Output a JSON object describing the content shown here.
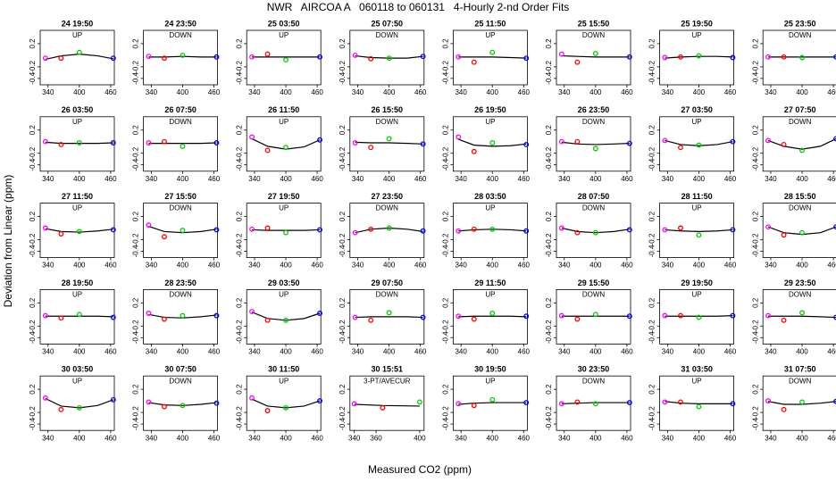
{
  "chart_data": {
    "type": "scatter",
    "title": "NWR   AIRCOA A   060118 to 060131   4-Hourly 2-nd Order Fits",
    "x_label": "Measured CO2 (ppm)",
    "y_label": "Deviation from Linear (ppm)",
    "xlim": [
      325,
      467
    ],
    "ylim": [
      -0.51,
      0.43
    ],
    "xticks": [
      340,
      400,
      460
    ],
    "yticks": [
      0.2,
      -0.2,
      -0.4
    ],
    "x": [
      335,
      365,
      400,
      465
    ],
    "fit_x": [
      335,
      365,
      400,
      435,
      465
    ],
    "point_colors": [
      "#ff00ff",
      "#ff0000",
      "#00cc00",
      "#0000ff"
    ],
    "fit_color": "#000000",
    "panels": [
      {
        "title": "24 19:50",
        "label": "UP",
        "values": [
          -0.05,
          -0.05,
          0.05,
          -0.05
        ],
        "fit": [
          -0.07,
          -0.01,
          0.02,
          -0.01,
          -0.06
        ]
      },
      {
        "title": "24 23:50",
        "label": "DOWN",
        "values": [
          -0.02,
          -0.05,
          0.0,
          -0.03
        ],
        "fit": [
          -0.03,
          -0.03,
          -0.02,
          -0.03,
          -0.03
        ]
      },
      {
        "title": "25 03:50",
        "label": "UP",
        "values": [
          -0.03,
          0.02,
          -0.08,
          -0.03
        ],
        "fit": [
          -0.03,
          -0.03,
          -0.03,
          -0.03,
          -0.03
        ]
      },
      {
        "title": "25 07:50",
        "label": "DOWN",
        "values": [
          0.0,
          -0.06,
          -0.05,
          -0.02
        ],
        "fit": [
          -0.01,
          -0.04,
          -0.05,
          -0.05,
          -0.02
        ]
      },
      {
        "title": "25 11:50",
        "label": "UP",
        "values": [
          -0.03,
          -0.12,
          0.05,
          -0.05
        ],
        "fit": [
          -0.03,
          -0.03,
          -0.03,
          -0.04,
          -0.05
        ]
      },
      {
        "title": "25 15:50",
        "label": "DOWN",
        "values": [
          0.02,
          -0.12,
          0.03,
          -0.03
        ],
        "fit": [
          -0.01,
          -0.02,
          -0.03,
          -0.03,
          -0.03
        ]
      },
      {
        "title": "25 19:50",
        "label": "UP",
        "values": [
          -0.04,
          -0.03,
          -0.01,
          -0.04
        ],
        "fit": [
          -0.05,
          -0.03,
          -0.02,
          -0.02,
          -0.03
        ]
      },
      {
        "title": "25 23:50",
        "label": "DOWN",
        "values": [
          -0.03,
          -0.03,
          -0.04,
          -0.03
        ],
        "fit": [
          -0.03,
          -0.03,
          -0.03,
          -0.03,
          -0.03
        ]
      },
      {
        "title": "26 03:50",
        "label": "UP",
        "values": [
          0.0,
          -0.05,
          -0.02,
          -0.02
        ],
        "fit": [
          -0.01,
          -0.03,
          -0.03,
          -0.03,
          -0.02
        ]
      },
      {
        "title": "26 07:50",
        "label": "DOWN",
        "values": [
          -0.02,
          0.0,
          -0.08,
          -0.02
        ],
        "fit": [
          -0.03,
          -0.03,
          -0.03,
          -0.03,
          -0.02
        ]
      },
      {
        "title": "26 11:50",
        "label": "UP",
        "values": [
          0.08,
          -0.15,
          -0.1,
          0.03
        ],
        "fit": [
          0.05,
          -0.08,
          -0.13,
          -0.09,
          0.03
        ]
      },
      {
        "title": "26 15:50",
        "label": "DOWN",
        "values": [
          -0.02,
          -0.1,
          0.05,
          -0.04
        ],
        "fit": [
          -0.01,
          -0.02,
          -0.02,
          -0.03,
          -0.04
        ]
      },
      {
        "title": "26 19:50",
        "label": "UP",
        "values": [
          0.08,
          -0.17,
          -0.02,
          -0.05
        ],
        "fit": [
          0.04,
          -0.06,
          -0.08,
          -0.07,
          -0.04
        ]
      },
      {
        "title": "26 23:50",
        "label": "DOWN",
        "values": [
          0.0,
          0.0,
          -0.12,
          -0.03
        ],
        "fit": [
          -0.01,
          -0.04,
          -0.05,
          -0.04,
          -0.03
        ]
      },
      {
        "title": "27 03:50",
        "label": "UP",
        "values": [
          0.02,
          -0.1,
          -0.06,
          0.0
        ],
        "fit": [
          0.02,
          -0.05,
          -0.07,
          -0.05,
          0.0
        ]
      },
      {
        "title": "27 07:50",
        "label": "DOWN",
        "values": [
          0.02,
          -0.05,
          -0.15,
          0.05
        ],
        "fit": [
          0.02,
          -0.08,
          -0.13,
          -0.08,
          0.05
        ]
      },
      {
        "title": "27 11:50",
        "label": "UP",
        "values": [
          0.0,
          -0.1,
          -0.06,
          -0.03
        ],
        "fit": [
          -0.01,
          -0.06,
          -0.07,
          -0.05,
          -0.02
        ]
      },
      {
        "title": "27 15:50",
        "label": "DOWN",
        "values": [
          0.05,
          -0.15,
          -0.04,
          -0.03
        ],
        "fit": [
          0.03,
          -0.06,
          -0.08,
          -0.06,
          -0.02
        ]
      },
      {
        "title": "27 19:50",
        "label": "UP",
        "values": [
          -0.02,
          0.0,
          -0.08,
          -0.03
        ],
        "fit": [
          -0.03,
          -0.04,
          -0.04,
          -0.04,
          -0.03
        ]
      },
      {
        "title": "27 23:50",
        "label": "DOWN",
        "values": [
          -0.08,
          -0.02,
          0.0,
          -0.05
        ],
        "fit": [
          -0.08,
          -0.02,
          0.0,
          -0.02,
          -0.06
        ]
      },
      {
        "title": "28 03:50",
        "label": "UP",
        "values": [
          -0.05,
          -0.02,
          -0.02,
          -0.05
        ],
        "fit": [
          -0.05,
          -0.03,
          -0.02,
          -0.03,
          -0.05
        ]
      },
      {
        "title": "28 07:50",
        "label": "DOWN",
        "values": [
          0.0,
          -0.08,
          -0.08,
          -0.03
        ],
        "fit": [
          0.0,
          -0.06,
          -0.08,
          -0.06,
          -0.02
        ]
      },
      {
        "title": "28 11:50",
        "label": "UP",
        "values": [
          -0.03,
          0.0,
          -0.12,
          -0.03
        ],
        "fit": [
          -0.03,
          -0.05,
          -0.06,
          -0.05,
          -0.03
        ]
      },
      {
        "title": "28 15:50",
        "label": "DOWN",
        "values": [
          0.02,
          -0.12,
          -0.08,
          0.02
        ],
        "fit": [
          0.02,
          -0.08,
          -0.11,
          -0.08,
          0.02
        ]
      },
      {
        "title": "28 19:50",
        "label": "UP",
        "values": [
          -0.02,
          -0.06,
          0.0,
          -0.05
        ],
        "fit": [
          -0.03,
          -0.03,
          -0.03,
          -0.03,
          -0.04
        ]
      },
      {
        "title": "28 23:50",
        "label": "DOWN",
        "values": [
          0.02,
          -0.08,
          -0.02,
          -0.02
        ],
        "fit": [
          0.0,
          -0.05,
          -0.06,
          -0.04,
          -0.01
        ]
      },
      {
        "title": "29 03:50",
        "label": "UP",
        "values": [
          0.05,
          -0.1,
          -0.1,
          0.02
        ],
        "fit": [
          0.04,
          -0.07,
          -0.1,
          -0.07,
          0.02
        ]
      },
      {
        "title": "29 07:50",
        "label": "DOWN",
        "values": [
          -0.05,
          -0.1,
          0.03,
          -0.05
        ],
        "fit": [
          -0.05,
          -0.04,
          -0.04,
          -0.04,
          -0.05
        ]
      },
      {
        "title": "29 11:50",
        "label": "UP",
        "values": [
          -0.03,
          -0.08,
          0.02,
          -0.03
        ],
        "fit": [
          -0.04,
          -0.03,
          -0.03,
          -0.03,
          -0.04
        ]
      },
      {
        "title": "29 15:50",
        "label": "DOWN",
        "values": [
          -0.02,
          -0.08,
          0.0,
          -0.03
        ],
        "fit": [
          -0.03,
          -0.03,
          -0.03,
          -0.03,
          -0.03
        ]
      },
      {
        "title": "29 19:50",
        "label": "UP",
        "values": [
          -0.02,
          -0.02,
          -0.05,
          -0.02
        ],
        "fit": [
          -0.03,
          -0.03,
          -0.03,
          -0.03,
          -0.02
        ]
      },
      {
        "title": "29 23:50",
        "label": "DOWN",
        "values": [
          -0.02,
          -0.1,
          0.03,
          -0.05
        ],
        "fit": [
          -0.03,
          -0.03,
          -0.03,
          -0.04,
          -0.05
        ]
      },
      {
        "title": "30 03:50",
        "label": "UP",
        "values": [
          0.05,
          -0.15,
          -0.12,
          0.02
        ],
        "fit": [
          0.04,
          -0.09,
          -0.12,
          -0.08,
          0.02
        ]
      },
      {
        "title": "30 07:50",
        "label": "DOWN",
        "values": [
          -0.02,
          -0.1,
          -0.08,
          -0.04
        ],
        "fit": [
          -0.03,
          -0.07,
          -0.08,
          -0.06,
          -0.03
        ]
      },
      {
        "title": "30 11:50",
        "label": "UP",
        "values": [
          0.05,
          -0.17,
          -0.12,
          0.0
        ],
        "fit": [
          0.03,
          -0.09,
          -0.12,
          -0.09,
          0.0
        ]
      },
      {
        "title": "30 15:51",
        "label": "3-PT/AVECUR",
        "xlim": [
          336,
          404
        ],
        "xticks": [
          340,
          360,
          400
        ],
        "x": [
          340,
          366,
          400
        ],
        "fit_x": [
          340,
          366,
          400
        ],
        "values": [
          -0.05,
          -0.12,
          -0.02
        ],
        "fit": [
          -0.06,
          -0.08,
          -0.09
        ]
      },
      {
        "title": "30 19:50",
        "label": "UP",
        "values": [
          -0.05,
          -0.08,
          0.02,
          -0.03
        ],
        "fit": [
          -0.06,
          -0.04,
          -0.03,
          -0.03,
          -0.03
        ]
      },
      {
        "title": "30 23:50",
        "label": "DOWN",
        "values": [
          -0.05,
          -0.02,
          -0.05,
          -0.03
        ],
        "fit": [
          -0.05,
          -0.04,
          -0.03,
          -0.03,
          -0.03
        ]
      },
      {
        "title": "31 03:50",
        "label": "UP",
        "values": [
          -0.02,
          -0.02,
          -0.1,
          -0.05
        ],
        "fit": [
          -0.01,
          -0.04,
          -0.05,
          -0.05,
          -0.05
        ]
      },
      {
        "title": "31 07:50",
        "label": "DOWN",
        "values": [
          0.0,
          -0.15,
          -0.02,
          -0.01
        ],
        "fit": [
          -0.01,
          -0.06,
          -0.06,
          -0.04,
          -0.01
        ]
      }
    ]
  }
}
